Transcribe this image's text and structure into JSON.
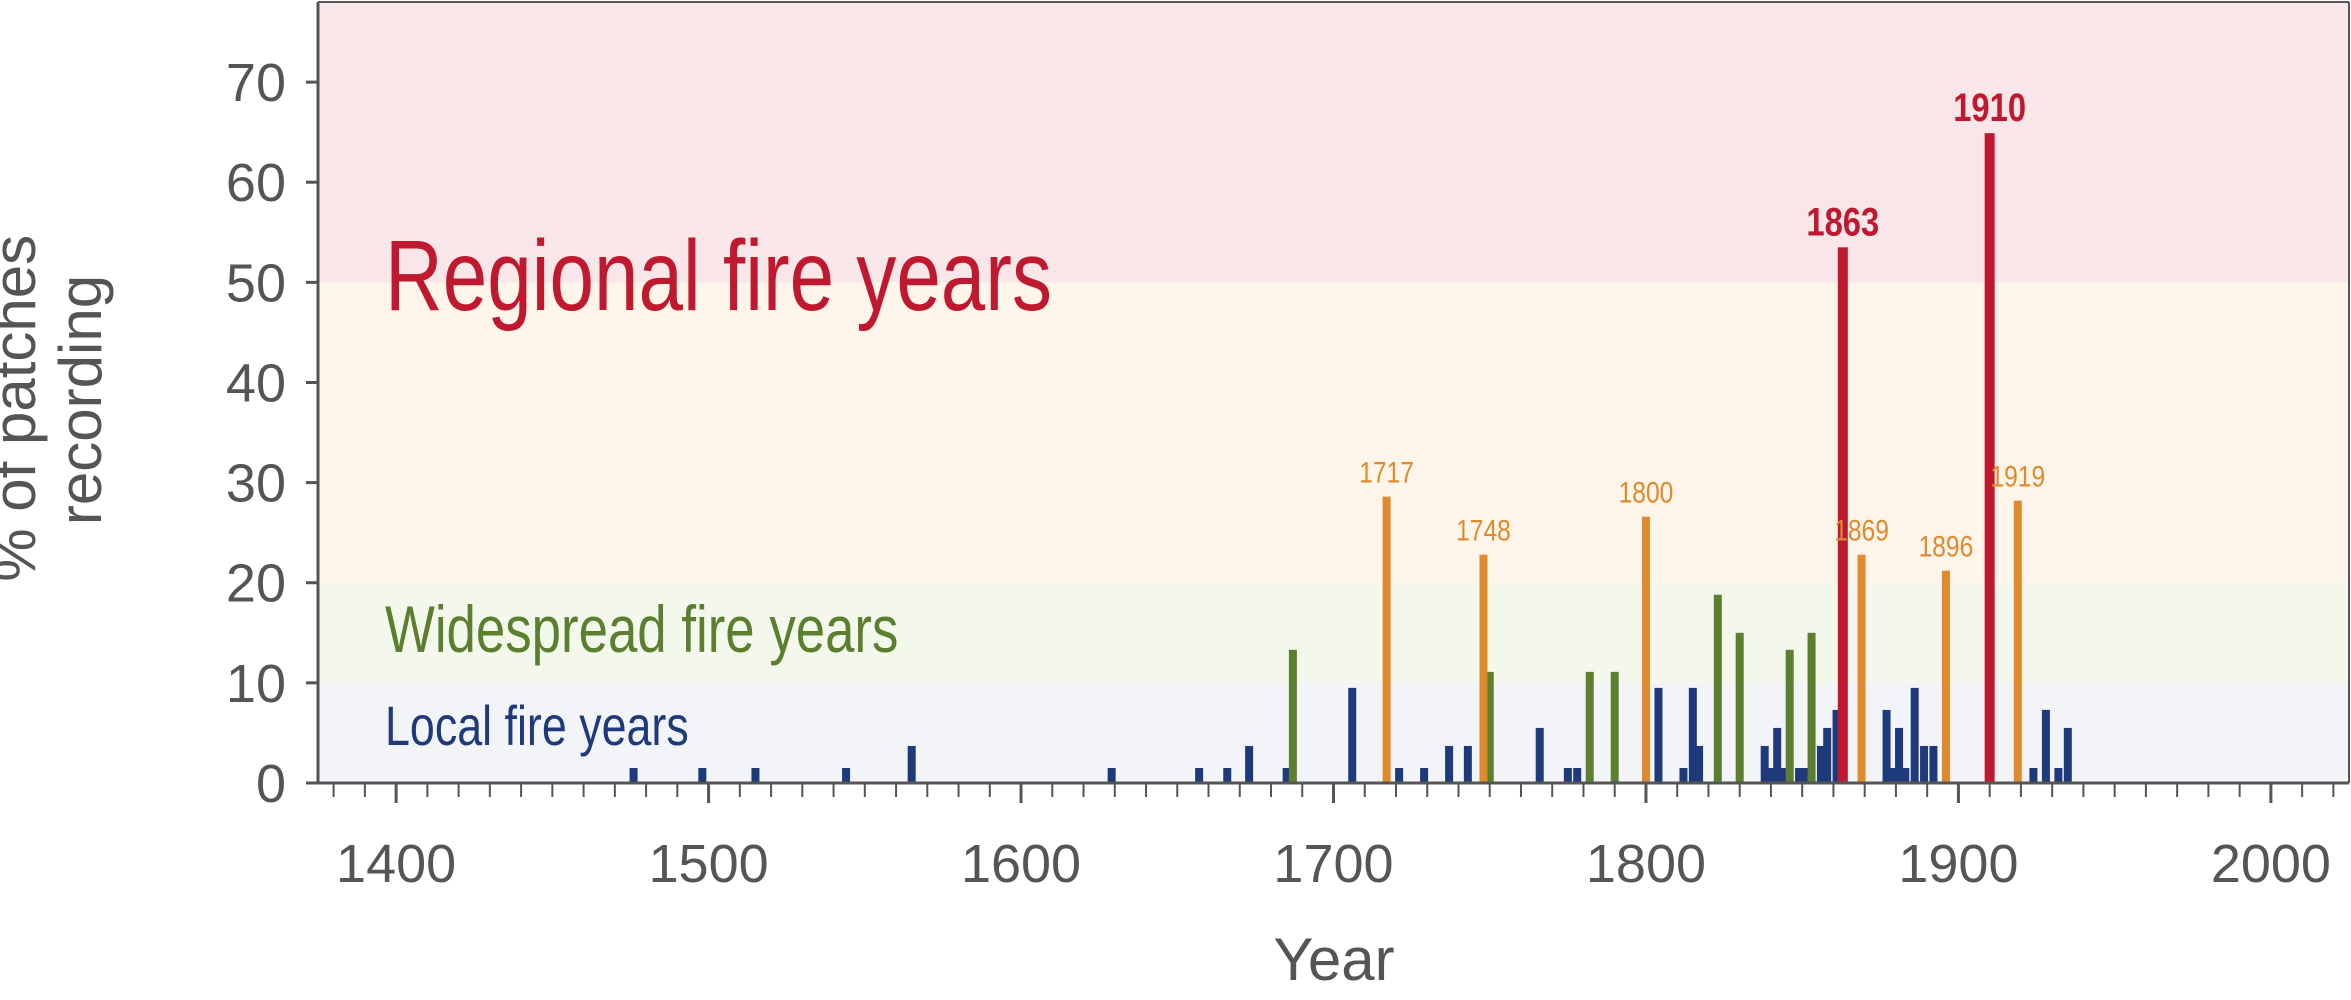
{
  "chart_data": {
    "type": "bar",
    "title": "",
    "xlabel": "Year",
    "ylabel": [
      "% of patches",
      "recording"
    ],
    "xlim": [
      1375,
      2025
    ],
    "ylim": [
      0,
      78
    ],
    "x_ticks": [
      1400,
      1500,
      1600,
      1700,
      1800,
      1900,
      2000
    ],
    "y_ticks": [
      0,
      10,
      20,
      30,
      40,
      50,
      60,
      70
    ],
    "x_minor_tick_step": 10,
    "grid": false,
    "bands": [
      {
        "name": "Local fire years",
        "from": 0,
        "to": 10,
        "color": "#f3f4f8",
        "label_color": "#1e3a7b"
      },
      {
        "name": "Widespread fire years",
        "from": 10,
        "to": 20,
        "color": "#f3f7ec",
        "label_color": "#5b7f2e"
      },
      {
        "name": "",
        "from": 20,
        "to": 50,
        "color": "#fdf5ea",
        "label_color": "#e08a2e"
      },
      {
        "name": "Regional fire years",
        "from": 50,
        "to": 78,
        "color": "#f8e6e8",
        "label_color": "#c0192f"
      }
    ],
    "series": [
      {
        "category": "local",
        "color": "#1e3a7b",
        "points": [
          {
            "x": 1476,
            "y": 1.5
          },
          {
            "x": 1498,
            "y": 1.5
          },
          {
            "x": 1515,
            "y": 1.5
          },
          {
            "x": 1544,
            "y": 1.5
          },
          {
            "x": 1565,
            "y": 3.7
          },
          {
            "x": 1629,
            "y": 1.5
          },
          {
            "x": 1657,
            "y": 1.5
          },
          {
            "x": 1666,
            "y": 1.5
          },
          {
            "x": 1673,
            "y": 3.7
          },
          {
            "x": 1685,
            "y": 1.5
          },
          {
            "x": 1706,
            "y": 9.5
          },
          {
            "x": 1721,
            "y": 1.5
          },
          {
            "x": 1729,
            "y": 1.5
          },
          {
            "x": 1737,
            "y": 3.7
          },
          {
            "x": 1743,
            "y": 3.7
          },
          {
            "x": 1766,
            "y": 5.5
          },
          {
            "x": 1775,
            "y": 1.5
          },
          {
            "x": 1778,
            "y": 1.5
          },
          {
            "x": 1804,
            "y": 9.5
          },
          {
            "x": 1812,
            "y": 1.5
          },
          {
            "x": 1815,
            "y": 9.5
          },
          {
            "x": 1817,
            "y": 3.7
          },
          {
            "x": 1838,
            "y": 3.7
          },
          {
            "x": 1840,
            "y": 1.5
          },
          {
            "x": 1842,
            "y": 5.5
          },
          {
            "x": 1844,
            "y": 1.5
          },
          {
            "x": 1849,
            "y": 1.5
          },
          {
            "x": 1851,
            "y": 1.5
          },
          {
            "x": 1856,
            "y": 3.7
          },
          {
            "x": 1858,
            "y": 5.5
          },
          {
            "x": 1861,
            "y": 7.3
          },
          {
            "x": 1877,
            "y": 7.3
          },
          {
            "x": 1879,
            "y": 1.5
          },
          {
            "x": 1881,
            "y": 5.5
          },
          {
            "x": 1883,
            "y": 1.5
          },
          {
            "x": 1886,
            "y": 9.5
          },
          {
            "x": 1889,
            "y": 3.7
          },
          {
            "x": 1892,
            "y": 3.7
          },
          {
            "x": 1924,
            "y": 1.5
          },
          {
            "x": 1928,
            "y": 7.3
          },
          {
            "x": 1932,
            "y": 1.5
          },
          {
            "x": 1935,
            "y": 5.5
          }
        ]
      },
      {
        "category": "widespread",
        "color": "#5b7f2e",
        "points": [
          {
            "x": 1687,
            "y": 13.3
          },
          {
            "x": 1750,
            "y": 11.1
          },
          {
            "x": 1782,
            "y": 11.1
          },
          {
            "x": 1790,
            "y": 11.1
          },
          {
            "x": 1823,
            "y": 18.8
          },
          {
            "x": 1830,
            "y": 15.0
          },
          {
            "x": 1846,
            "y": 13.3
          },
          {
            "x": 1853,
            "y": 15.0
          }
        ]
      },
      {
        "category": "intermediate",
        "color": "#e08a2e",
        "points": [
          {
            "x": 1717,
            "y": 28.6,
            "label": "1717"
          },
          {
            "x": 1748,
            "y": 22.8,
            "label": "1748"
          },
          {
            "x": 1800,
            "y": 26.6,
            "label": "1800"
          },
          {
            "x": 1869,
            "y": 22.8,
            "label": "1869"
          },
          {
            "x": 1896,
            "y": 21.2,
            "label": "1896"
          },
          {
            "x": 1919,
            "y": 28.2,
            "label": "1919"
          }
        ]
      },
      {
        "category": "regional",
        "color": "#c0192f",
        "points": [
          {
            "x": 1863,
            "y": 53.5,
            "label": "1863"
          },
          {
            "x": 1910,
            "y": 64.9,
            "label": "1910"
          }
        ]
      }
    ]
  }
}
